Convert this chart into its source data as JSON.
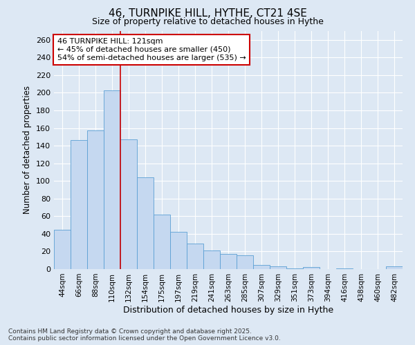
{
  "title": "46, TURNPIKE HILL, HYTHE, CT21 4SE",
  "subtitle": "Size of property relative to detached houses in Hythe",
  "xlabel": "Distribution of detached houses by size in Hythe",
  "ylabel": "Number of detached properties",
  "categories": [
    "44sqm",
    "66sqm",
    "88sqm",
    "110sqm",
    "132sqm",
    "154sqm",
    "175sqm",
    "197sqm",
    "219sqm",
    "241sqm",
    "263sqm",
    "285sqm",
    "307sqm",
    "329sqm",
    "351sqm",
    "373sqm",
    "394sqm",
    "416sqm",
    "438sqm",
    "460sqm",
    "482sqm"
  ],
  "values": [
    45,
    146,
    157,
    203,
    147,
    104,
    62,
    42,
    29,
    21,
    17,
    16,
    5,
    3,
    1,
    2,
    0,
    1,
    0,
    0,
    3
  ],
  "bar_color": "#c5d8f0",
  "bar_edge_color": "#5a9fd4",
  "red_line_x": 3.5,
  "annotation_text": "46 TURNPIKE HILL: 121sqm\n← 45% of detached houses are smaller (450)\n54% of semi-detached houses are larger (535) →",
  "annotation_box_facecolor": "#ffffff",
  "annotation_box_edgecolor": "#cc0000",
  "red_line_color": "#cc0000",
  "ylim": [
    0,
    270
  ],
  "yticks": [
    0,
    20,
    40,
    60,
    80,
    100,
    120,
    140,
    160,
    180,
    200,
    220,
    240,
    260
  ],
  "background_color": "#dde8f4",
  "grid_color": "#ffffff",
  "footer_line1": "Contains HM Land Registry data © Crown copyright and database right 2025.",
  "footer_line2": "Contains public sector information licensed under the Open Government Licence v3.0."
}
